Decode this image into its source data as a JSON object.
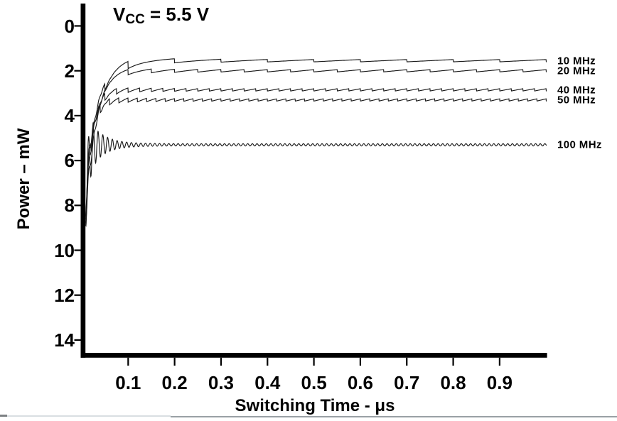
{
  "chart_data": {
    "type": "line",
    "annotation": {
      "prefix": "V",
      "sub": "CC",
      "rest": " = 5.5 V"
    },
    "xlabel": "Switching Time - μs",
    "ylabel": "Power – mW",
    "x_ticks": [
      "0.1",
      "0.2",
      "0.3",
      "0.4",
      "0.5",
      "0.6",
      "0.7",
      "0.8",
      "0.9"
    ],
    "y_ticks": [
      "0",
      "2",
      "4",
      "6",
      "8",
      "10",
      "12",
      "14"
    ],
    "xlim_us": [
      0,
      1.0
    ],
    "ylim_mw": [
      0,
      14
    ],
    "y_axis_inverted": true,
    "grid": false,
    "legend_position": "right-of-curves",
    "line_color": "#1a1a1a",
    "axis_color": "#000000",
    "series": [
      {
        "label": "10 MHz",
        "frequency_mhz": 10,
        "switching_period_us": 0.1,
        "steady_power_mw": 1.55,
        "start_power_mw": 8.4
      },
      {
        "label": "20 MHz",
        "frequency_mhz": 20,
        "switching_period_us": 0.05,
        "steady_power_mw": 2.0,
        "start_power_mw": 8.4
      },
      {
        "label": "40 MHz",
        "frequency_mhz": 40,
        "switching_period_us": 0.025,
        "steady_power_mw": 2.85,
        "start_power_mw": 8.4
      },
      {
        "label": "50 MHz",
        "frequency_mhz": 50,
        "switching_period_us": 0.02,
        "steady_power_mw": 3.3,
        "start_power_mw": 8.4
      },
      {
        "label": "100 MHz",
        "frequency_mhz": 100,
        "switching_period_us": 0.01,
        "steady_power_mw": 5.3,
        "start_power_mw": 8.4
      }
    ]
  }
}
